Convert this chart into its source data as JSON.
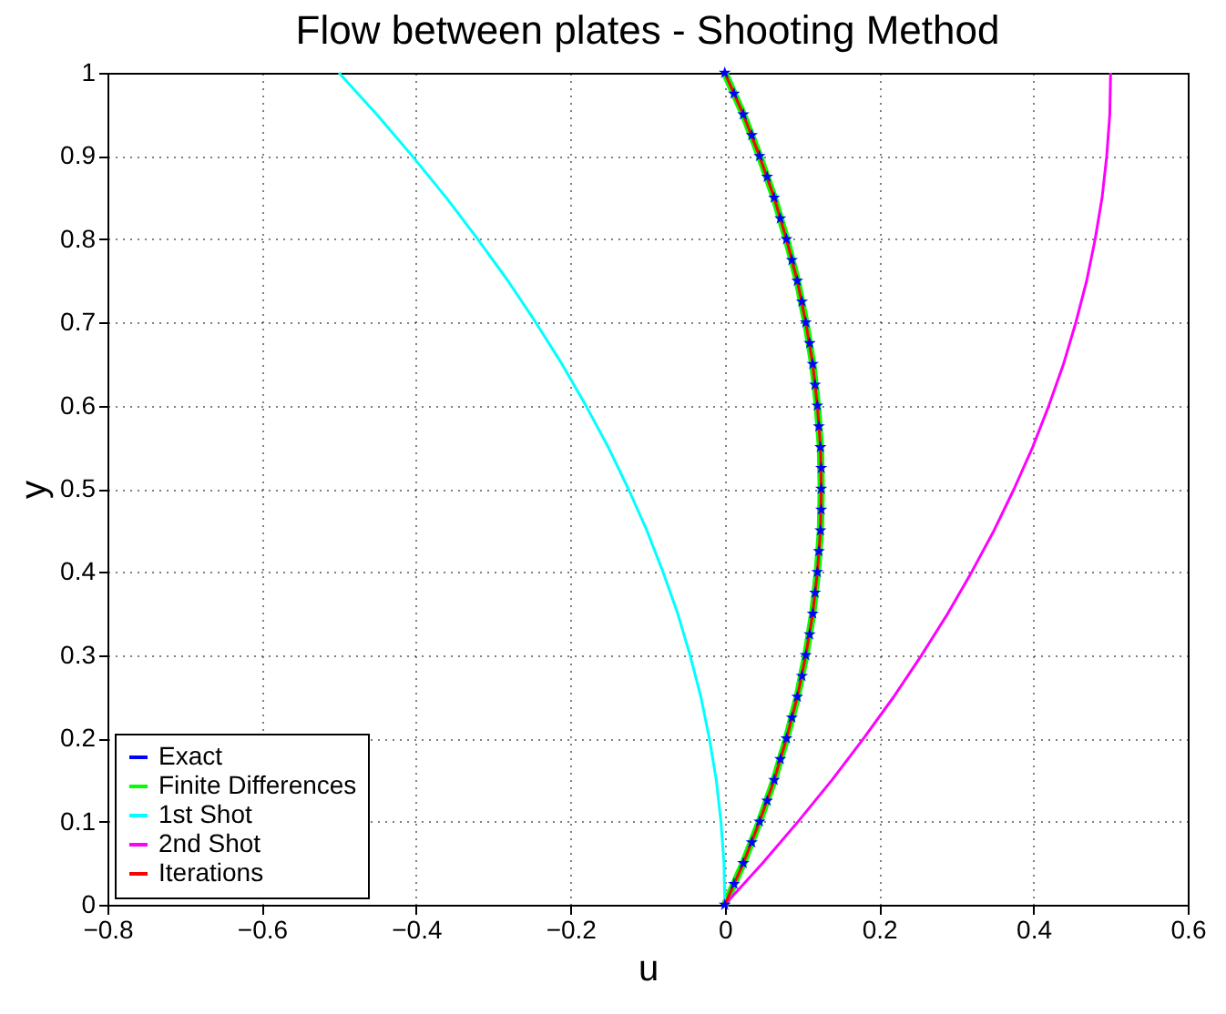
{
  "chart_data": {
    "type": "line",
    "title": "Flow between plates - Shooting Method",
    "xlabel": "u",
    "ylabel": "y",
    "xlim": [
      -0.8,
      0.6
    ],
    "xticks": [
      -0.8,
      -0.6,
      -0.4,
      -0.2,
      0,
      0.2,
      0.4,
      0.6
    ],
    "ylim": [
      0,
      1
    ],
    "yticks": [
      0,
      0.1,
      0.2,
      0.3,
      0.4,
      0.5,
      0.6,
      0.7,
      0.8,
      0.9,
      1
    ],
    "grid": true,
    "legend": "bottom left",
    "series": [
      {
        "name": "Exact",
        "type": "scatter",
        "marker": "star",
        "color": "#0000ff",
        "x": [
          0,
          0.012,
          0.024,
          0.035,
          0.045,
          0.055,
          0.064,
          0.072,
          0.08,
          0.087,
          0.094,
          0.1,
          0.105,
          0.11,
          0.114,
          0.117,
          0.12,
          0.122,
          0.124,
          0.125,
          0.125,
          0.125,
          0.124,
          0.122,
          0.12,
          0.117,
          0.114,
          0.11,
          0.105,
          0.1,
          0.094,
          0.087,
          0.08,
          0.072,
          0.064,
          0.055,
          0.045,
          0.035,
          0.024,
          0.012,
          0
        ],
        "values": [
          0,
          0.025,
          0.05,
          0.075,
          0.1,
          0.125,
          0.15,
          0.175,
          0.2,
          0.225,
          0.25,
          0.275,
          0.3,
          0.325,
          0.35,
          0.375,
          0.4,
          0.425,
          0.45,
          0.475,
          0.5,
          0.525,
          0.55,
          0.575,
          0.6,
          0.625,
          0.65,
          0.675,
          0.7,
          0.725,
          0.75,
          0.775,
          0.8,
          0.825,
          0.85,
          0.875,
          0.9,
          0.925,
          0.95,
          0.975,
          1
        ]
      },
      {
        "name": "Finite Differences",
        "color": "#00ff00",
        "x": [
          0,
          0.024,
          0.045,
          0.064,
          0.08,
          0.094,
          0.105,
          0.114,
          0.12,
          0.124,
          0.125,
          0.124,
          0.12,
          0.114,
          0.105,
          0.094,
          0.08,
          0.064,
          0.045,
          0.024,
          0
        ],
        "values": [
          0,
          0.05,
          0.1,
          0.15,
          0.2,
          0.25,
          0.3,
          0.35,
          0.4,
          0.45,
          0.5,
          0.55,
          0.6,
          0.65,
          0.7,
          0.75,
          0.8,
          0.85,
          0.9,
          0.95,
          1
        ]
      },
      {
        "name": "1st Shot",
        "color": "#00ffff",
        "x": [
          0,
          -0.001,
          -0.005,
          -0.011,
          -0.02,
          -0.031,
          -0.045,
          -0.061,
          -0.08,
          -0.101,
          -0.125,
          -0.151,
          -0.18,
          -0.211,
          -0.245,
          -0.281,
          -0.32,
          -0.361,
          -0.405,
          -0.451,
          -0.5
        ],
        "values": [
          0,
          0.05,
          0.1,
          0.15,
          0.2,
          0.25,
          0.3,
          0.35,
          0.4,
          0.45,
          0.5,
          0.55,
          0.6,
          0.65,
          0.7,
          0.75,
          0.8,
          0.85,
          0.9,
          0.95,
          1
        ]
      },
      {
        "name": "2nd Shot",
        "color": "#ff00ff",
        "x": [
          0,
          0.049,
          0.095,
          0.139,
          0.18,
          0.219,
          0.255,
          0.289,
          0.32,
          0.349,
          0.375,
          0.399,
          0.42,
          0.439,
          0.455,
          0.469,
          0.48,
          0.489,
          0.495,
          0.499,
          0.5
        ],
        "values": [
          0,
          0.05,
          0.1,
          0.15,
          0.2,
          0.25,
          0.3,
          0.35,
          0.4,
          0.45,
          0.5,
          0.55,
          0.6,
          0.65,
          0.7,
          0.75,
          0.8,
          0.85,
          0.9,
          0.95,
          1
        ]
      },
      {
        "name": "Iterations",
        "color": "#ff0000",
        "x": [
          0,
          0.024,
          0.045,
          0.064,
          0.08,
          0.094,
          0.105,
          0.114,
          0.12,
          0.124,
          0.125,
          0.124,
          0.12,
          0.114,
          0.105,
          0.094,
          0.08,
          0.064,
          0.045,
          0.024,
          0
        ],
        "values": [
          0,
          0.05,
          0.1,
          0.15,
          0.2,
          0.25,
          0.3,
          0.35,
          0.4,
          0.45,
          0.5,
          0.55,
          0.6,
          0.65,
          0.7,
          0.75,
          0.8,
          0.85,
          0.9,
          0.95,
          1
        ]
      }
    ]
  }
}
